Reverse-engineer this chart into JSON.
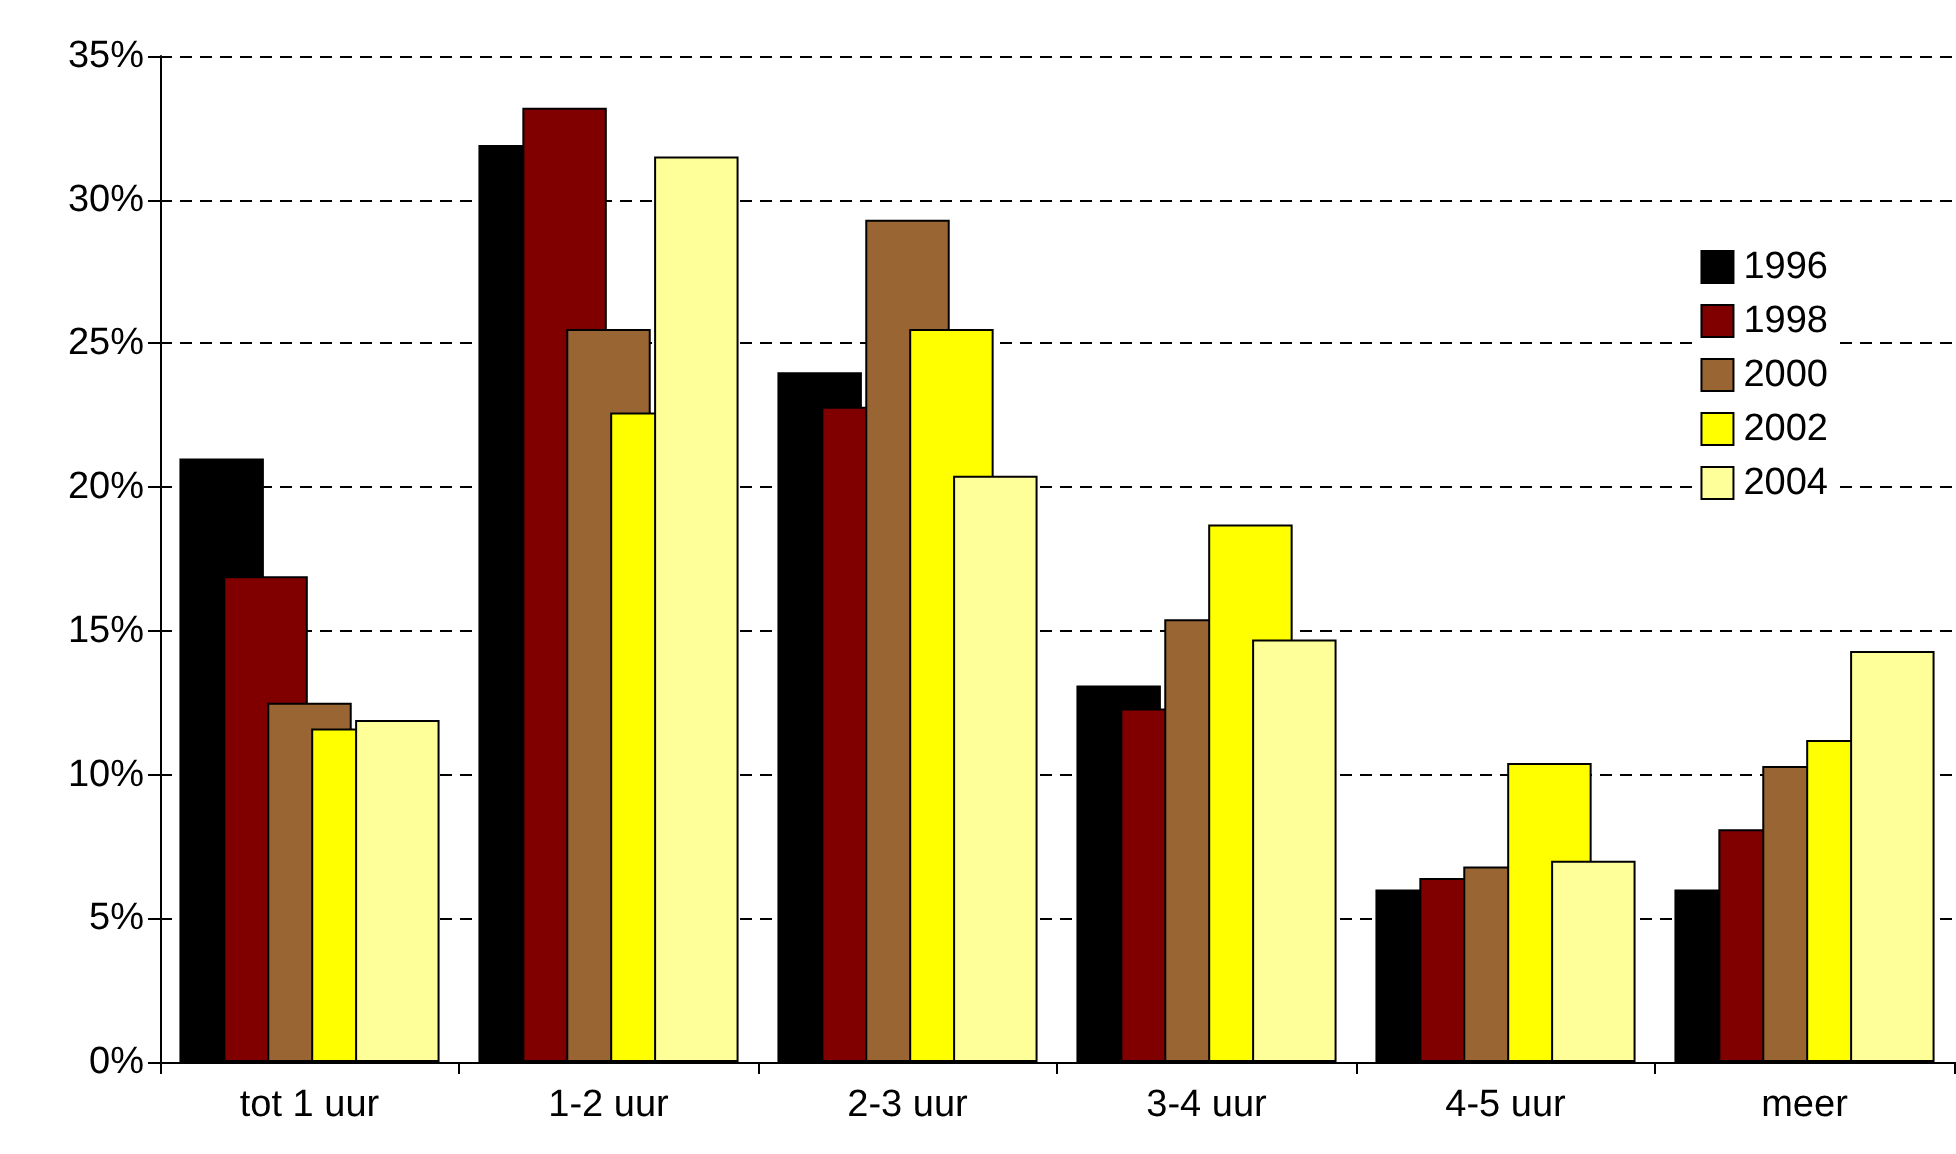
{
  "chart_data": {
    "type": "bar",
    "categories": [
      "tot 1 uur",
      "1-2 uur",
      "2-3 uur",
      "3-4 uur",
      "4-5 uur",
      "meer"
    ],
    "series": [
      {
        "name": "1996",
        "color": "#000000",
        "values": [
          21.0,
          31.9,
          24.0,
          13.1,
          6.0,
          6.0
        ]
      },
      {
        "name": "1998",
        "color": "#800000",
        "values": [
          16.9,
          33.2,
          22.8,
          12.3,
          6.4,
          8.1
        ]
      },
      {
        "name": "2000",
        "color": "#996633",
        "values": [
          12.5,
          25.5,
          29.3,
          15.4,
          6.8,
          10.3
        ]
      },
      {
        "name": "2002",
        "color": "#ffff00",
        "values": [
          11.6,
          22.6,
          25.5,
          18.7,
          10.4,
          11.2
        ]
      },
      {
        "name": "2004",
        "color": "#ffff99",
        "values": [
          11.9,
          31.5,
          20.4,
          14.7,
          7.0,
          14.3
        ]
      }
    ],
    "ylim": [
      0,
      35
    ],
    "yticks": [
      {
        "value": 0,
        "label": "0%"
      },
      {
        "value": 5,
        "label": "5%"
      },
      {
        "value": 10,
        "label": "10%"
      },
      {
        "value": 15,
        "label": "15%"
      },
      {
        "value": 20,
        "label": "20%"
      },
      {
        "value": 25,
        "label": "25%"
      },
      {
        "value": 30,
        "label": "30%"
      },
      {
        "value": 35,
        "label": "35%"
      }
    ],
    "grid": "y",
    "legend": "top right"
  }
}
